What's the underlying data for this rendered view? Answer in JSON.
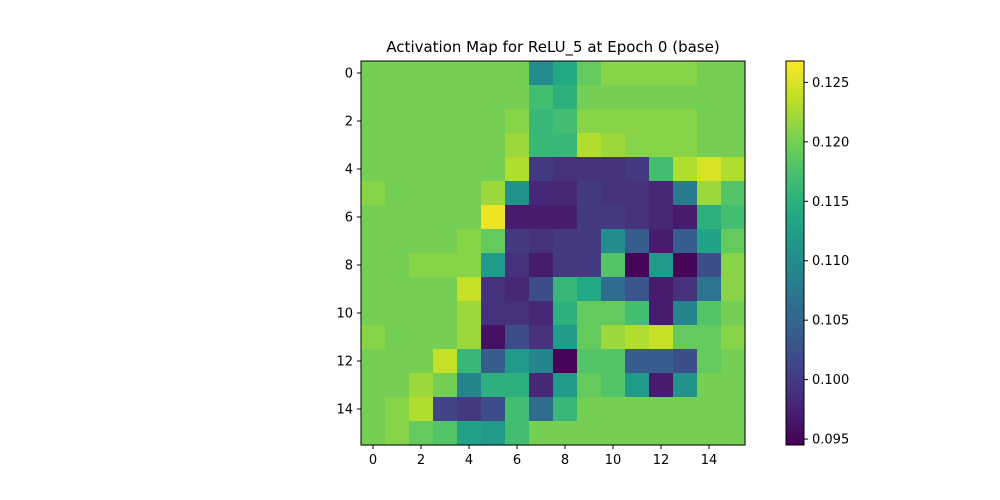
{
  "chart_data": [
    {
      "type": "heatmap",
      "title": "Activation Map for ReLU_5 at Epoch 0 (base)",
      "xlabel": "",
      "ylabel": "",
      "xlim": [
        -0.5,
        15.5
      ],
      "ylim": [
        15.5,
        -0.5
      ],
      "x_ticks": [
        0,
        2,
        4,
        6,
        8,
        10,
        12,
        14
      ],
      "y_ticks": [
        0,
        2,
        4,
        6,
        8,
        10,
        12,
        14
      ],
      "x_tick_labels": [
        "0",
        "2",
        "4",
        "6",
        "8",
        "10",
        "12",
        "14"
      ],
      "y_tick_labels": [
        "0",
        "2",
        "4",
        "6",
        "8",
        "10",
        "12",
        "14"
      ],
      "grid": false,
      "colormap": "viridis",
      "values": [
        [
          0.12,
          0.12,
          0.12,
          0.12,
          0.12,
          0.12,
          0.12,
          0.11,
          0.114,
          0.119,
          0.121,
          0.121,
          0.121,
          0.121,
          0.12,
          0.12
        ],
        [
          0.12,
          0.12,
          0.12,
          0.12,
          0.12,
          0.12,
          0.12,
          0.117,
          0.115,
          0.12,
          0.12,
          0.12,
          0.12,
          0.12,
          0.12,
          0.12
        ],
        [
          0.12,
          0.12,
          0.12,
          0.12,
          0.12,
          0.12,
          0.121,
          0.116,
          0.117,
          0.121,
          0.121,
          0.121,
          0.121,
          0.121,
          0.12,
          0.12
        ],
        [
          0.12,
          0.12,
          0.12,
          0.12,
          0.12,
          0.12,
          0.122,
          0.116,
          0.116,
          0.123,
          0.122,
          0.121,
          0.121,
          0.121,
          0.12,
          0.12
        ],
        [
          0.12,
          0.12,
          0.12,
          0.12,
          0.12,
          0.12,
          0.123,
          0.1,
          0.099,
          0.099,
          0.099,
          0.1,
          0.117,
          0.123,
          0.125,
          0.123
        ],
        [
          0.121,
          0.12,
          0.12,
          0.12,
          0.12,
          0.122,
          0.111,
          0.098,
          0.098,
          0.1,
          0.099,
          0.099,
          0.098,
          0.108,
          0.122,
          0.118
        ],
        [
          0.12,
          0.12,
          0.12,
          0.12,
          0.12,
          0.126,
          0.097,
          0.097,
          0.097,
          0.1,
          0.1,
          0.099,
          0.098,
          0.097,
          0.115,
          0.117
        ],
        [
          0.12,
          0.12,
          0.12,
          0.12,
          0.121,
          0.119,
          0.1,
          0.099,
          0.1,
          0.1,
          0.11,
          0.104,
          0.097,
          0.104,
          0.113,
          0.119
        ],
        [
          0.12,
          0.12,
          0.121,
          0.121,
          0.121,
          0.112,
          0.099,
          0.097,
          0.1,
          0.1,
          0.118,
          0.095,
          0.112,
          0.095,
          0.102,
          0.121
        ],
        [
          0.12,
          0.12,
          0.12,
          0.12,
          0.124,
          0.099,
          0.098,
          0.102,
          0.116,
          0.114,
          0.106,
          0.103,
          0.097,
          0.099,
          0.107,
          0.121
        ],
        [
          0.12,
          0.12,
          0.12,
          0.12,
          0.122,
          0.099,
          0.099,
          0.098,
          0.115,
          0.119,
          0.119,
          0.117,
          0.097,
          0.109,
          0.118,
          0.12
        ],
        [
          0.121,
          0.12,
          0.12,
          0.12,
          0.122,
          0.096,
          0.102,
          0.099,
          0.112,
          0.119,
          0.122,
          0.123,
          0.124,
          0.119,
          0.119,
          0.121
        ],
        [
          0.12,
          0.12,
          0.12,
          0.124,
          0.116,
          0.104,
          0.112,
          0.109,
          0.095,
          0.118,
          0.118,
          0.104,
          0.104,
          0.102,
          0.119,
          0.12
        ],
        [
          0.12,
          0.12,
          0.122,
          0.12,
          0.109,
          0.115,
          0.115,
          0.098,
          0.112,
          0.119,
          0.118,
          0.112,
          0.097,
          0.111,
          0.12,
          0.12
        ],
        [
          0.12,
          0.121,
          0.123,
          0.101,
          0.1,
          0.102,
          0.117,
          0.106,
          0.116,
          0.12,
          0.12,
          0.12,
          0.12,
          0.12,
          0.12,
          0.12
        ],
        [
          0.12,
          0.121,
          0.119,
          0.118,
          0.113,
          0.112,
          0.117,
          0.12,
          0.12,
          0.12,
          0.12,
          0.12,
          0.12,
          0.12,
          0.12,
          0.12
        ]
      ],
      "colorbar": {
        "min": 0.0945,
        "max": 0.1268,
        "ticks": [
          0.095,
          0.1,
          0.105,
          0.11,
          0.115,
          0.12,
          0.125
        ],
        "tick_labels": [
          "0.095",
          "0.100",
          "0.105",
          "0.110",
          "0.115",
          "0.120",
          "0.125"
        ]
      }
    }
  ]
}
